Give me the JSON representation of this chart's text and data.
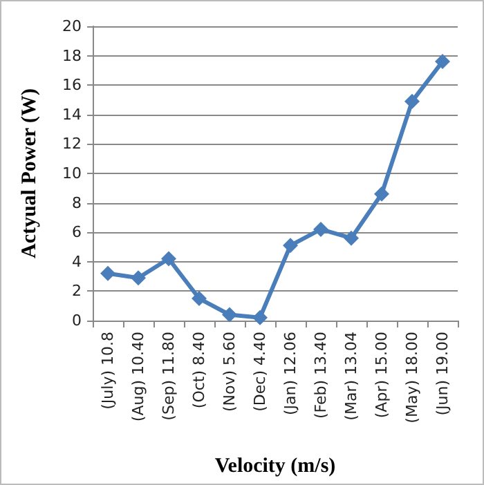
{
  "chart_data": {
    "type": "line",
    "xlabel": "Velocity (m/s)",
    "ylabel": "Actyual Power (W)",
    "categories": [
      "(July) 10.8",
      "(Aug) 10.40",
      "(Sep) 11.80",
      "(Oct) 8.40",
      "(Nov) 5.60",
      "(Dec) 4.40",
      "(Jan) 12.06",
      "(Feb) 13.40",
      "(Mar) 13.04",
      "(Apr) 15.00",
      "(May) 18.00",
      "(Jun) 19.00"
    ],
    "series": [
      {
        "color": "#4a7ebb",
        "values": [
          3.2,
          2.9,
          4.2,
          1.5,
          0.4,
          0.2,
          5.1,
          6.2,
          5.6,
          8.6,
          14.9,
          17.6
        ]
      }
    ],
    "ylim": [
      0,
      20
    ],
    "yticks": [
      0,
      2,
      4,
      6,
      8,
      10,
      12,
      14,
      16,
      18,
      20
    ],
    "grid": "y",
    "marker": "diamond",
    "line_style": "solid"
  }
}
